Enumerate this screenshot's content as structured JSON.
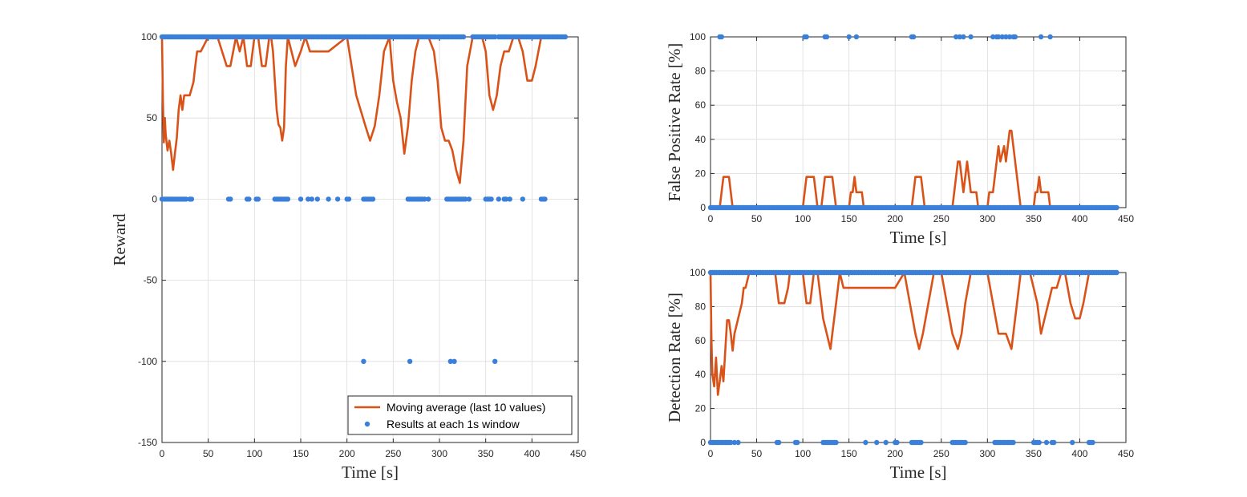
{
  "chart_data": [
    {
      "id": "reward",
      "type": "line",
      "xlabel": "Time [s]",
      "ylabel": "Reward",
      "xlim": [
        0,
        450
      ],
      "ylim": [
        -150,
        100
      ],
      "xticks": [
        0,
        50,
        100,
        150,
        200,
        250,
        300,
        350,
        400,
        450
      ],
      "yticks": [
        -150,
        -100,
        -50,
        0,
        50,
        100
      ],
      "grid": true,
      "legend_position": "bottom-right",
      "series": [
        {
          "name": "Moving average (last 10 values)",
          "kind": "line",
          "color": "#D95319",
          "x": [
            0,
            1,
            2,
            3,
            4,
            6,
            8,
            10,
            12,
            14,
            16,
            18,
            20,
            22,
            24,
            26,
            30,
            34,
            36,
            38,
            42,
            50,
            60,
            70,
            74,
            80,
            84,
            88,
            92,
            96,
            100,
            104,
            108,
            112,
            116,
            118,
            120,
            122,
            124,
            126,
            128,
            130,
            132,
            134,
            136,
            140,
            144,
            150,
            155,
            160,
            165,
            170,
            175,
            180,
            200,
            210,
            220,
            225,
            230,
            235,
            240,
            246,
            250,
            254,
            258,
            262,
            266,
            270,
            274,
            278,
            282,
            288,
            294,
            298,
            302,
            306,
            310,
            314,
            318,
            322,
            326,
            330,
            336,
            342,
            346,
            350,
            354,
            358,
            362,
            366,
            370,
            375,
            380,
            385,
            390,
            395,
            400,
            404,
            410,
            415,
            420,
            425
          ],
          "y": [
            100,
            60,
            35,
            50,
            40,
            30,
            36,
            28,
            18,
            28,
            38,
            55,
            64,
            55,
            64,
            64,
            64,
            72,
            82,
            91,
            91,
            100,
            100,
            82,
            82,
            100,
            91,
            100,
            82,
            82,
            100,
            100,
            82,
            82,
            100,
            100,
            91,
            73,
            55,
            46,
            44,
            36,
            44,
            82,
            100,
            91,
            82,
            91,
            100,
            91,
            91,
            91,
            91,
            91,
            100,
            64,
            45,
            36,
            45,
            64,
            91,
            100,
            73,
            60,
            50,
            28,
            45,
            73,
            91,
            100,
            100,
            100,
            91,
            73,
            44,
            36,
            36,
            30,
            18,
            10,
            36,
            82,
            100,
            100,
            100,
            91,
            64,
            55,
            64,
            82,
            91,
            91,
            100,
            100,
            91,
            73,
            73,
            82,
            100,
            100,
            100,
            100
          ]
        },
        {
          "name": "Results at each 1s window",
          "kind": "scatter",
          "color": "#3A80DB",
          "y_levels": [
            100,
            0,
            -100
          ],
          "level_0_x": [
            0,
            2,
            4,
            6,
            8,
            10,
            12,
            14,
            16,
            18,
            20,
            22,
            24,
            26,
            30,
            32,
            72,
            74,
            92,
            94,
            102,
            104,
            122,
            124,
            126,
            128,
            130,
            132,
            134,
            136,
            150,
            158,
            162,
            168,
            180,
            190,
            200,
            202,
            218,
            220,
            222,
            224,
            226,
            228,
            266,
            268,
            270,
            272,
            274,
            276,
            278,
            280,
            282,
            284,
            288,
            308,
            310,
            312,
            314,
            316,
            318,
            320,
            322,
            324,
            326,
            328,
            332,
            350,
            352,
            354,
            356,
            364,
            370,
            372,
            376,
            390,
            410,
            412,
            414
          ],
          "level_neg100_x": [
            218,
            268,
            312,
            316,
            360
          ],
          "level_100_gaps": [
            [
              34,
              36
            ],
            [
              68,
              70
            ],
            [
              140,
              142
            ],
            [
              210,
              212
            ],
            [
              272,
              274
            ],
            [
              326,
              336
            ],
            [
              360,
              364
            ]
          ]
        }
      ]
    },
    {
      "id": "fpr",
      "type": "line",
      "xlabel": "Time [s]",
      "ylabel": "False Positive Rate [%]",
      "xlim": [
        0,
        450
      ],
      "ylim": [
        0,
        100
      ],
      "xticks": [
        0,
        50,
        100,
        150,
        200,
        250,
        300,
        350,
        400,
        450
      ],
      "yticks": [
        0,
        20,
        40,
        60,
        80,
        100
      ],
      "grid": true,
      "series": [
        {
          "kind": "line",
          "color": "#D95319",
          "x": [
            0,
            10,
            12,
            14,
            20,
            22,
            24,
            100,
            102,
            104,
            112,
            114,
            116,
            120,
            122,
            124,
            132,
            134,
            136,
            150,
            152,
            154,
            156,
            158,
            160,
            164,
            166,
            168,
            218,
            220,
            222,
            228,
            230,
            232,
            262,
            264,
            266,
            268,
            270,
            272,
            274,
            276,
            278,
            280,
            282,
            284,
            288,
            290,
            292,
            300,
            302,
            306,
            308,
            310,
            312,
            314,
            318,
            320,
            322,
            324,
            326,
            328,
            330,
            332,
            334,
            336,
            340,
            342,
            350,
            352,
            354,
            356,
            358,
            360,
            362,
            366,
            368,
            370,
            376,
            378,
            380,
            440
          ],
          "y": [
            0,
            0,
            9,
            18,
            18,
            9,
            0,
            0,
            9,
            18,
            18,
            9,
            0,
            0,
            9,
            18,
            18,
            9,
            0,
            0,
            9,
            9,
            18,
            9,
            9,
            9,
            0,
            0,
            0,
            9,
            18,
            18,
            9,
            0,
            0,
            9,
            18,
            27,
            27,
            18,
            9,
            18,
            27,
            18,
            9,
            9,
            9,
            0,
            0,
            0,
            9,
            9,
            18,
            27,
            36,
            27,
            36,
            27,
            36,
            45,
            45,
            36,
            27,
            18,
            9,
            0,
            0,
            0,
            0,
            9,
            9,
            18,
            9,
            9,
            9,
            9,
            0,
            0,
            0,
            0,
            0,
            0
          ]
        },
        {
          "kind": "scatter",
          "color": "#3A80DB",
          "level_100_x": [
            10,
            12,
            102,
            104,
            124,
            126,
            150,
            158,
            218,
            220,
            266,
            270,
            274,
            282,
            306,
            310,
            312,
            316,
            320,
            324,
            328,
            330,
            358,
            368
          ],
          "level_0_range": [
            0,
            440
          ]
        }
      ]
    },
    {
      "id": "dr",
      "type": "line",
      "xlabel": "Time [s]",
      "ylabel": "Detection Rate [%]",
      "xlim": [
        0,
        450
      ],
      "ylim": [
        0,
        100
      ],
      "xticks": [
        0,
        50,
        100,
        150,
        200,
        250,
        300,
        350,
        400,
        450
      ],
      "yticks": [
        0,
        20,
        40,
        60,
        80,
        100
      ],
      "grid": true,
      "series": [
        {
          "kind": "line",
          "color": "#D95319",
          "x": [
            0,
            1,
            2,
            4,
            6,
            8,
            10,
            12,
            14,
            16,
            18,
            20,
            22,
            24,
            26,
            30,
            34,
            36,
            38,
            42,
            50,
            70,
            74,
            80,
            84,
            86,
            100,
            104,
            108,
            112,
            116,
            118,
            120,
            122,
            126,
            130,
            132,
            136,
            140,
            144,
            150,
            155,
            160,
            170,
            200,
            210,
            216,
            222,
            226,
            230,
            236,
            242,
            250,
            256,
            262,
            268,
            272,
            276,
            282,
            288,
            300,
            306,
            312,
            318,
            320,
            326,
            328,
            332,
            336,
            342,
            346,
            350,
            354,
            358,
            362,
            366,
            370,
            375,
            380,
            384,
            390,
            395,
            400,
            404,
            410,
            414,
            420,
            425
          ],
          "y": [
            100,
            60,
            40,
            33,
            50,
            28,
            36,
            45,
            36,
            54,
            72,
            72,
            64,
            54,
            64,
            73,
            82,
            91,
            91,
            100,
            100,
            100,
            82,
            82,
            91,
            100,
            100,
            82,
            82,
            100,
            100,
            91,
            82,
            73,
            64,
            55,
            64,
            82,
            100,
            91,
            91,
            91,
            91,
            91,
            91,
            100,
            82,
            64,
            55,
            64,
            82,
            100,
            100,
            82,
            64,
            55,
            64,
            82,
            100,
            100,
            100,
            82,
            64,
            64,
            64,
            55,
            64,
            82,
            100,
            100,
            100,
            91,
            82,
            64,
            73,
            82,
            91,
            91,
            100,
            100,
            82,
            73,
            73,
            82,
            100,
            100,
            100,
            100
          ]
        },
        {
          "kind": "scatter",
          "color": "#3A80DB",
          "level_0_x": [
            0,
            2,
            4,
            6,
            8,
            10,
            12,
            14,
            16,
            18,
            20,
            22,
            26,
            30,
            72,
            74,
            92,
            94,
            122,
            124,
            126,
            128,
            130,
            132,
            134,
            136,
            168,
            180,
            190,
            200,
            202,
            218,
            220,
            222,
            224,
            226,
            228,
            262,
            264,
            266,
            268,
            270,
            272,
            274,
            276,
            308,
            310,
            312,
            314,
            316,
            318,
            320,
            322,
            324,
            326,
            328,
            350,
            352,
            354,
            356,
            364,
            370,
            372,
            392,
            410,
            412,
            414
          ],
          "level_100_range": [
            0,
            440
          ]
        }
      ]
    }
  ]
}
